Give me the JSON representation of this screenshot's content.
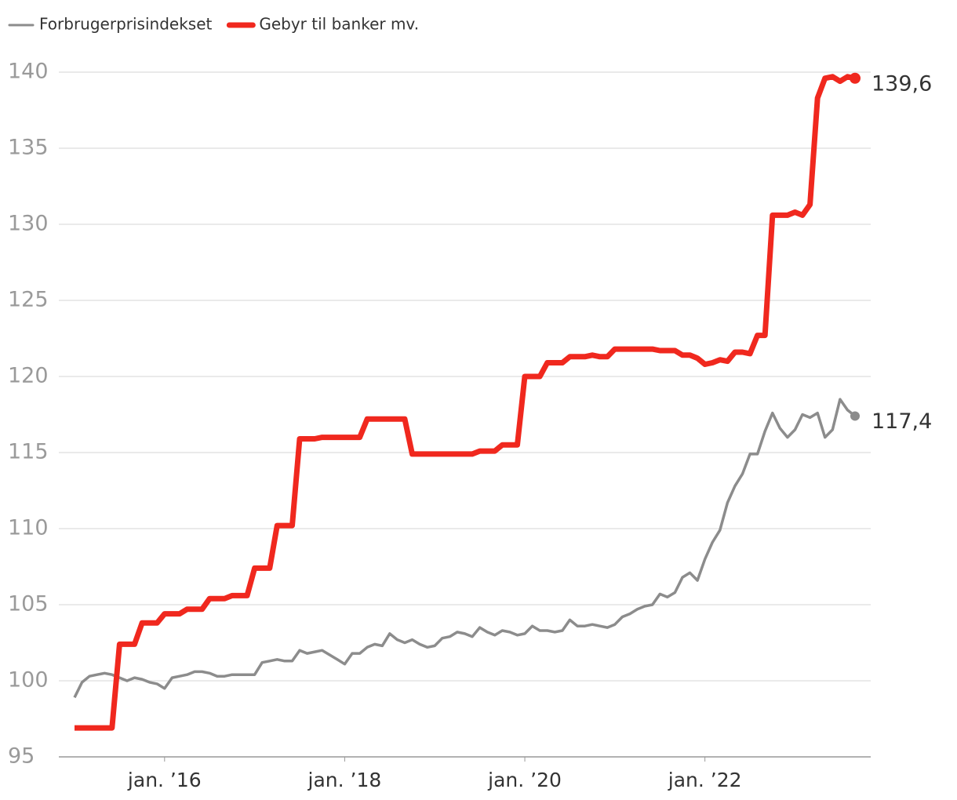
{
  "chart_data": {
    "type": "line",
    "x": [
      "2015-01",
      "2015-02",
      "2015-03",
      "2015-04",
      "2015-05",
      "2015-06",
      "2015-07",
      "2015-08",
      "2015-09",
      "2015-10",
      "2015-11",
      "2015-12",
      "2016-01",
      "2016-02",
      "2016-03",
      "2016-04",
      "2016-05",
      "2016-06",
      "2016-07",
      "2016-08",
      "2016-09",
      "2016-10",
      "2016-11",
      "2016-12",
      "2017-01",
      "2017-02",
      "2017-03",
      "2017-04",
      "2017-05",
      "2017-06",
      "2017-07",
      "2017-08",
      "2017-09",
      "2017-10",
      "2017-11",
      "2017-12",
      "2018-01",
      "2018-02",
      "2018-03",
      "2018-04",
      "2018-05",
      "2018-06",
      "2018-07",
      "2018-08",
      "2018-09",
      "2018-10",
      "2018-11",
      "2018-12",
      "2019-01",
      "2019-02",
      "2019-03",
      "2019-04",
      "2019-05",
      "2019-06",
      "2019-07",
      "2019-08",
      "2019-09",
      "2019-10",
      "2019-11",
      "2019-12",
      "2020-01",
      "2020-02",
      "2020-03",
      "2020-04",
      "2020-05",
      "2020-06",
      "2020-07",
      "2020-08",
      "2020-09",
      "2020-10",
      "2020-11",
      "2020-12",
      "2021-01",
      "2021-02",
      "2021-03",
      "2021-04",
      "2021-05",
      "2021-06",
      "2021-07",
      "2021-08",
      "2021-09",
      "2021-10",
      "2021-11",
      "2021-12",
      "2022-01",
      "2022-02",
      "2022-03",
      "2022-04",
      "2022-05",
      "2022-06",
      "2022-07",
      "2022-08",
      "2022-09",
      "2022-10",
      "2022-11",
      "2022-12",
      "2023-01",
      "2023-02",
      "2023-03",
      "2023-04",
      "2023-05",
      "2023-06",
      "2023-07",
      "2023-08",
      "2023-09"
    ],
    "series": [
      {
        "name": "Forbrugerprisindekset",
        "color": "#8c8c8c",
        "end_label": "117,4",
        "values": [
          98.9,
          99.9,
          100.3,
          100.4,
          100.5,
          100.4,
          100.2,
          100.0,
          100.2,
          100.1,
          99.9,
          99.8,
          99.5,
          100.2,
          100.3,
          100.4,
          100.6,
          100.6,
          100.5,
          100.3,
          100.3,
          100.4,
          100.4,
          100.4,
          100.4,
          101.2,
          101.3,
          101.4,
          101.3,
          101.3,
          102.0,
          101.8,
          101.9,
          102.0,
          101.7,
          101.4,
          101.1,
          101.8,
          101.8,
          102.2,
          102.4,
          102.3,
          103.1,
          102.7,
          102.5,
          102.7,
          102.4,
          102.2,
          102.3,
          102.8,
          102.9,
          103.2,
          103.1,
          102.9,
          103.5,
          103.2,
          103.0,
          103.3,
          103.2,
          103.0,
          103.1,
          103.6,
          103.3,
          103.3,
          103.2,
          103.3,
          104.0,
          103.6,
          103.6,
          103.7,
          103.6,
          103.5,
          103.7,
          104.2,
          104.4,
          104.7,
          104.9,
          105.0,
          105.7,
          105.5,
          105.8,
          106.8,
          107.1,
          106.6,
          108.0,
          109.1,
          109.9,
          111.7,
          112.8,
          113.6,
          114.9,
          114.9,
          116.4,
          117.6,
          116.6,
          116.0,
          116.5,
          117.5,
          117.3,
          117.6,
          116.0,
          116.5,
          118.5,
          117.8,
          117.4
        ]
      },
      {
        "name": "Gebyr til banker mv.",
        "color": "#f0281e",
        "end_label": "139,6",
        "values": [
          96.9,
          96.9,
          96.9,
          96.9,
          96.9,
          96.9,
          102.4,
          102.4,
          102.4,
          103.8,
          103.8,
          103.8,
          104.4,
          104.4,
          104.4,
          104.7,
          104.7,
          104.7,
          105.4,
          105.4,
          105.4,
          105.6,
          105.6,
          105.6,
          107.4,
          107.4,
          107.4,
          110.2,
          110.2,
          110.2,
          115.9,
          115.9,
          115.9,
          116.0,
          116.0,
          116.0,
          116.0,
          116.0,
          116.0,
          117.2,
          117.2,
          117.2,
          117.2,
          117.2,
          117.2,
          114.9,
          114.9,
          114.9,
          114.9,
          114.9,
          114.9,
          114.9,
          114.9,
          114.9,
          115.1,
          115.1,
          115.1,
          115.5,
          115.5,
          115.5,
          120.0,
          120.0,
          120.0,
          120.9,
          120.9,
          120.9,
          121.3,
          121.3,
          121.3,
          121.4,
          121.3,
          121.3,
          121.8,
          121.8,
          121.8,
          121.8,
          121.8,
          121.8,
          121.7,
          121.7,
          121.7,
          121.4,
          121.4,
          121.2,
          120.8,
          120.9,
          121.1,
          121.0,
          121.6,
          121.6,
          121.5,
          122.7,
          122.7,
          130.6,
          130.6,
          130.6,
          130.8,
          130.6,
          131.3,
          138.3,
          139.6,
          139.7,
          139.4,
          139.7,
          139.6
        ]
      }
    ],
    "ylim": [
      95,
      140
    ],
    "yticks": [
      95,
      100,
      105,
      110,
      115,
      120,
      125,
      130,
      135,
      140
    ],
    "xticks": [
      {
        "value": "2016-01",
        "label": "jan. ’16"
      },
      {
        "value": "2018-01",
        "label": "jan. ’18"
      },
      {
        "value": "2020-01",
        "label": "jan. ’20"
      },
      {
        "value": "2022-01",
        "label": "jan. ’22"
      }
    ],
    "grid": true
  }
}
